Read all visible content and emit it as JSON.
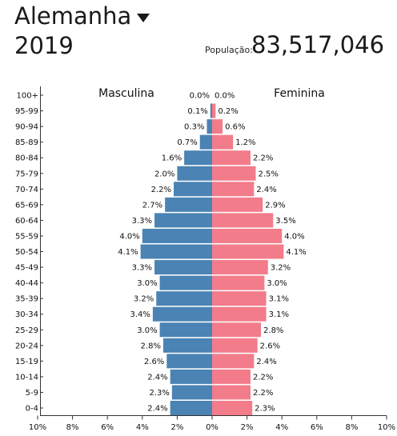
{
  "header": {
    "country": "Alemanha",
    "year": "2019",
    "population_label": "População:",
    "population_value": "83,517,046"
  },
  "colors": {
    "male": "#4a83b4",
    "female": "#f27c8a"
  },
  "chart_data": {
    "type": "bar",
    "orientation": "horizontal-pyramid",
    "left_label": "Masculina",
    "right_label": "Feminina",
    "categories": [
      "100+",
      "95-99",
      "90-94",
      "85-89",
      "80-84",
      "75-79",
      "70-74",
      "65-69",
      "60-64",
      "55-59",
      "50-54",
      "45-49",
      "40-44",
      "35-39",
      "30-34",
      "25-29",
      "20-24",
      "15-19",
      "10-14",
      "5-9",
      "0-4"
    ],
    "series": [
      {
        "name": "Masculina",
        "values": [
          0.0,
          0.1,
          0.3,
          0.7,
          1.6,
          2.0,
          2.2,
          2.7,
          3.3,
          4.0,
          4.1,
          3.3,
          3.0,
          3.2,
          3.4,
          3.0,
          2.8,
          2.6,
          2.4,
          2.3,
          2.4
        ]
      },
      {
        "name": "Feminina",
        "values": [
          0.0,
          0.2,
          0.6,
          1.2,
          2.2,
          2.5,
          2.4,
          2.9,
          3.5,
          4.0,
          4.1,
          3.2,
          3.0,
          3.1,
          3.1,
          2.8,
          2.6,
          2.4,
          2.2,
          2.2,
          2.3
        ]
      }
    ],
    "x_ticks": [
      "10%",
      "8%",
      "6%",
      "4%",
      "2%",
      "0%",
      "2%",
      "4%",
      "6%",
      "8%",
      "10%"
    ],
    "xlim": [
      -10,
      10
    ]
  }
}
